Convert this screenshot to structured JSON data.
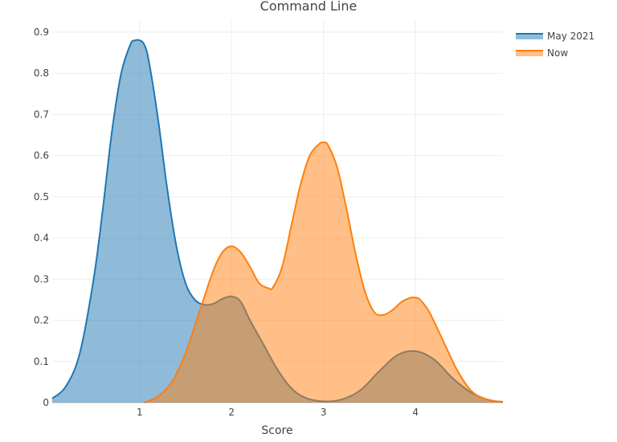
{
  "title": "Command Line",
  "legend": [
    {
      "name": "May 2021",
      "line_color": "#1f77b4",
      "fill_color": "rgba(31,119,180,0.5)"
    },
    {
      "name": "Now",
      "line_color": "#ff7f0e",
      "fill_color": "rgba(255,127,14,0.5)"
    }
  ],
  "axes": {
    "x_title": "Score",
    "x_ticks": [
      "1",
      "2",
      "3",
      "4"
    ],
    "y_ticks": [
      "0",
      "0.1",
      "0.2",
      "0.3",
      "0.4",
      "0.5",
      "0.6",
      "0.7",
      "0.8",
      "0.9"
    ]
  },
  "chart_data": {
    "type": "area",
    "title": "Command Line",
    "xlabel": "Score",
    "ylabel": "",
    "xlim": [
      0.05,
      4.95
    ],
    "ylim": [
      0,
      0.92
    ],
    "grid": true,
    "legend_position": "top-right",
    "x_ticks": [
      1,
      2,
      3,
      4
    ],
    "y_ticks": [
      0,
      0.1,
      0.2,
      0.3,
      0.4,
      0.5,
      0.6,
      0.7,
      0.8,
      0.9
    ],
    "series": [
      {
        "name": "May 2021",
        "color": "#1f77b4",
        "x": [
          0.05,
          0.2,
          0.35,
          0.5,
          0.6,
          0.7,
          0.8,
          0.9,
          0.95,
          1.0,
          1.05,
          1.1,
          1.2,
          1.3,
          1.4,
          1.5,
          1.6,
          1.7,
          1.8,
          1.9,
          2.0,
          2.1,
          2.2,
          2.35,
          2.5,
          2.65,
          2.8,
          3.0,
          3.2,
          3.4,
          3.6,
          3.8,
          4.0,
          4.2,
          4.4,
          4.6,
          4.8,
          4.95
        ],
        "values": [
          0.01,
          0.04,
          0.12,
          0.3,
          0.47,
          0.66,
          0.8,
          0.87,
          0.88,
          0.88,
          0.87,
          0.83,
          0.69,
          0.52,
          0.38,
          0.29,
          0.25,
          0.238,
          0.24,
          0.252,
          0.258,
          0.245,
          0.2,
          0.14,
          0.08,
          0.035,
          0.012,
          0.003,
          0.008,
          0.03,
          0.075,
          0.115,
          0.125,
          0.105,
          0.06,
          0.025,
          0.006,
          0.002
        ]
      },
      {
        "name": "Now",
        "color": "#ff7f0e",
        "x": [
          1.05,
          1.2,
          1.35,
          1.5,
          1.65,
          1.8,
          1.9,
          2.0,
          2.1,
          2.2,
          2.3,
          2.4,
          2.45,
          2.55,
          2.65,
          2.75,
          2.85,
          2.95,
          3.0,
          3.05,
          3.15,
          3.25,
          3.35,
          3.45,
          3.55,
          3.65,
          3.75,
          3.85,
          3.95,
          4.0,
          4.05,
          4.15,
          4.3,
          4.45,
          4.6,
          4.75,
          4.95
        ],
        "values": [
          0.0,
          0.015,
          0.05,
          0.12,
          0.22,
          0.32,
          0.365,
          0.38,
          0.365,
          0.33,
          0.29,
          0.278,
          0.28,
          0.33,
          0.43,
          0.53,
          0.6,
          0.628,
          0.632,
          0.625,
          0.57,
          0.47,
          0.36,
          0.27,
          0.22,
          0.213,
          0.225,
          0.245,
          0.255,
          0.255,
          0.25,
          0.22,
          0.15,
          0.08,
          0.03,
          0.01,
          0.001
        ]
      }
    ]
  }
}
